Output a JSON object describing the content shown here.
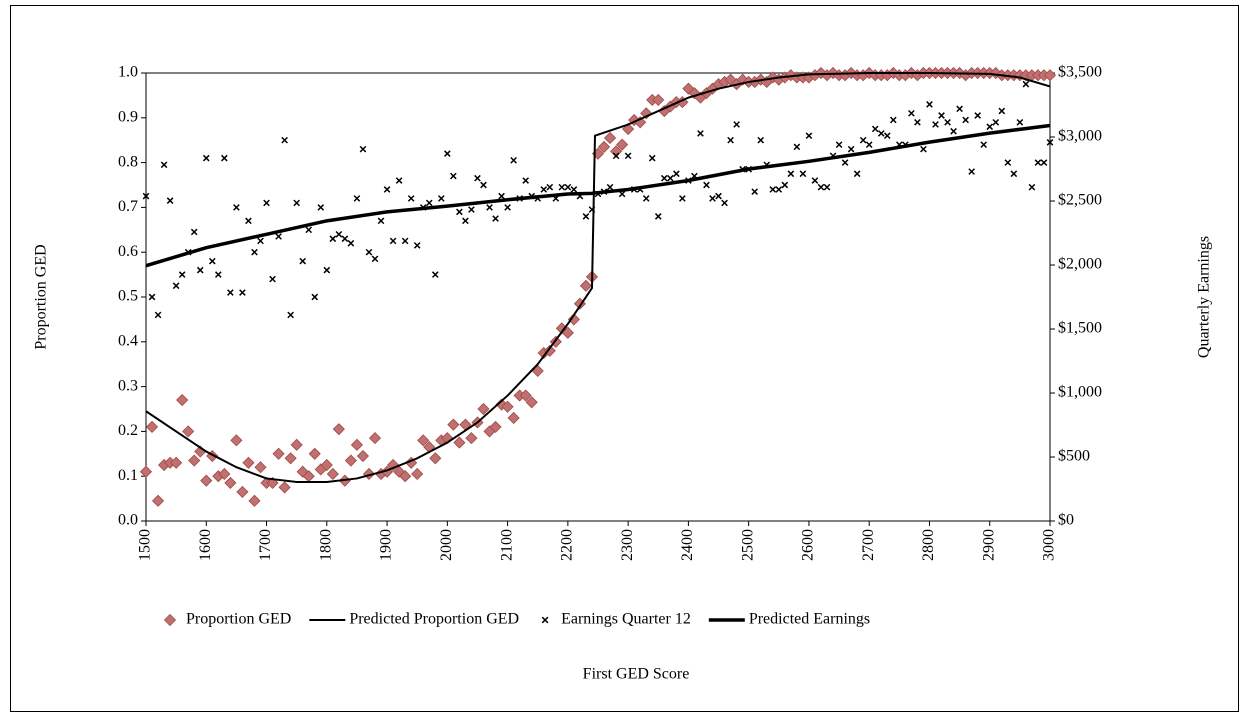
{
  "chart_data": {
    "type": "scatter",
    "x_label": "First GED Score",
    "y_label": "Proportion GED",
    "y2_label": "Quarterly Earnings",
    "xlim": [
      1500,
      3000
    ],
    "xticks": [
      1500,
      1600,
      1700,
      1800,
      1900,
      2000,
      2100,
      2200,
      2300,
      2400,
      2500,
      2600,
      2700,
      2800,
      2900,
      3000
    ],
    "ylim": [
      0,
      1
    ],
    "yticks": [
      {
        "value": 0,
        "label": "0.0"
      },
      0.1,
      0.2,
      0.3,
      0.4,
      0.5,
      0.6,
      0.7,
      0.8,
      0.9,
      {
        "value": 1,
        "label": "1.0"
      }
    ],
    "y2lim": [
      0,
      3500
    ],
    "y2ticks": [
      {
        "value": 0,
        "label": "$0"
      },
      {
        "value": 500,
        "label": "$500"
      },
      {
        "value": 1000,
        "label": "$1,000"
      },
      {
        "value": 1500,
        "label": "$1,500"
      },
      {
        "value": 2000,
        "label": "$2,000"
      },
      {
        "value": 2500,
        "label": "$2,500"
      },
      {
        "value": 3000,
        "label": "$3,000"
      },
      {
        "value": 3500,
        "label": "$3,500"
      }
    ],
    "grid": false,
    "legend": "bottom",
    "series": [
      {
        "name": "Proportion GED",
        "type": "scatter",
        "marker": "diamond",
        "color": "#c0706e",
        "x": [
          1500,
          1510,
          1520,
          1530,
          1540,
          1550,
          1560,
          1570,
          1580,
          1590,
          1600,
          1610,
          1620,
          1630,
          1640,
          1650,
          1660,
          1670,
          1680,
          1690,
          1700,
          1710,
          1720,
          1730,
          1740,
          1750,
          1760,
          1770,
          1780,
          1790,
          1800,
          1810,
          1820,
          1830,
          1840,
          1850,
          1860,
          1870,
          1880,
          1890,
          1900,
          1910,
          1920,
          1930,
          1940,
          1950,
          1960,
          1970,
          1980,
          1990,
          2000,
          2010,
          2020,
          2030,
          2040,
          2050,
          2060,
          2070,
          2080,
          2090,
          2100,
          2110,
          2120,
          2130,
          2140,
          2150,
          2160,
          2170,
          2180,
          2190,
          2200,
          2210,
          2220,
          2230,
          2240,
          2250,
          2260,
          2270,
          2280,
          2290,
          2300,
          2310,
          2320,
          2330,
          2340,
          2350,
          2360,
          2370,
          2380,
          2390,
          2400,
          2410,
          2420,
          2430,
          2440,
          2450,
          2460,
          2470,
          2480,
          2490,
          2500,
          2510,
          2520,
          2530,
          2540,
          2550,
          2560,
          2570,
          2580,
          2590,
          2600,
          2610,
          2620,
          2630,
          2640,
          2650,
          2660,
          2670,
          2680,
          2690,
          2700,
          2710,
          2720,
          2730,
          2740,
          2750,
          2760,
          2770,
          2780,
          2790,
          2800,
          2810,
          2820,
          2830,
          2840,
          2850,
          2860,
          2870,
          2880,
          2890,
          2900,
          2910,
          2920,
          2930,
          2940,
          2950,
          2960,
          2970,
          2980,
          2990,
          3000
        ],
        "values": [
          0.11,
          0.21,
          0.045,
          0.125,
          0.13,
          0.13,
          0.27,
          0.2,
          0.135,
          0.155,
          0.09,
          0.145,
          0.1,
          0.105,
          0.085,
          0.18,
          0.065,
          0.13,
          0.045,
          0.12,
          0.085,
          0.085,
          0.15,
          0.075,
          0.14,
          0.17,
          0.11,
          0.1,
          0.15,
          0.115,
          0.125,
          0.105,
          0.205,
          0.09,
          0.135,
          0.17,
          0.145,
          0.105,
          0.185,
          0.105,
          0.11,
          0.125,
          0.11,
          0.1,
          0.13,
          0.105,
          0.18,
          0.165,
          0.14,
          0.18,
          0.185,
          0.215,
          0.175,
          0.215,
          0.185,
          0.22,
          0.25,
          0.2,
          0.21,
          0.26,
          0.255,
          0.23,
          0.28,
          0.28,
          0.265,
          0.335,
          0.375,
          0.38,
          0.4,
          0.43,
          0.42,
          0.45,
          0.485,
          0.525,
          0.545,
          0.82,
          0.835,
          0.855,
          0.825,
          0.84,
          0.875,
          0.895,
          0.89,
          0.91,
          0.94,
          0.94,
          0.915,
          0.925,
          0.935,
          0.935,
          0.965,
          0.955,
          0.945,
          0.955,
          0.965,
          0.975,
          0.98,
          0.985,
          0.975,
          0.985,
          0.98,
          0.98,
          0.985,
          0.98,
          0.99,
          0.985,
          0.99,
          0.995,
          0.99,
          0.99,
          0.99,
          0.995,
          1.0,
          0.995,
          1.0,
          0.995,
          0.995,
          1.0,
          0.995,
          0.995,
          1.0,
          0.995,
          0.995,
          0.995,
          1.0,
          0.995,
          0.995,
          1.0,
          0.995,
          1.0,
          1.0,
          1.0,
          1.0,
          1.0,
          1.0,
          1.0,
          0.995,
          1.0,
          1.0,
          1.0,
          1.0,
          1.0,
          0.995,
          0.995,
          0.995,
          0.995,
          0.995,
          0.995,
          0.995,
          0.995,
          0.995
        ]
      },
      {
        "name": "Predicted Proportion GED",
        "type": "line",
        "line_width": 2,
        "color": "#000000",
        "x": [
          1500,
          1550,
          1600,
          1650,
          1700,
          1750,
          1800,
          1850,
          1900,
          1950,
          2000,
          2050,
          2100,
          2150,
          2200,
          2240,
          2245,
          2300,
          2350,
          2400,
          2450,
          2500,
          2550,
          2600,
          2700,
          2800,
          2900,
          2950,
          3000
        ],
        "values": [
          0.245,
          0.2,
          0.155,
          0.12,
          0.095,
          0.087,
          0.087,
          0.095,
          0.113,
          0.14,
          0.175,
          0.22,
          0.28,
          0.35,
          0.44,
          0.52,
          0.86,
          0.885,
          0.915,
          0.945,
          0.965,
          0.98,
          0.99,
          0.997,
          1.0,
          1.0,
          0.998,
          0.99,
          0.97
        ]
      },
      {
        "name": "Earnings Quarter 12",
        "type": "scatter",
        "marker": "x",
        "color": "#000000",
        "axis": "y2",
        "x": [
          1500,
          1510,
          1520,
          1530,
          1540,
          1550,
          1560,
          1570,
          1580,
          1590,
          1600,
          1610,
          1620,
          1630,
          1640,
          1650,
          1660,
          1670,
          1680,
          1690,
          1700,
          1710,
          1720,
          1730,
          1740,
          1750,
          1760,
          1770,
          1780,
          1790,
          1800,
          1810,
          1820,
          1830,
          1840,
          1850,
          1860,
          1870,
          1880,
          1890,
          1900,
          1910,
          1920,
          1930,
          1940,
          1950,
          1960,
          1970,
          1980,
          1990,
          2000,
          2010,
          2020,
          2030,
          2040,
          2050,
          2060,
          2070,
          2080,
          2090,
          2100,
          2110,
          2120,
          2130,
          2140,
          2150,
          2160,
          2170,
          2180,
          2190,
          2200,
          2210,
          2220,
          2230,
          2240,
          2250,
          2260,
          2270,
          2280,
          2290,
          2300,
          2310,
          2320,
          2330,
          2340,
          2350,
          2360,
          2370,
          2380,
          2390,
          2400,
          2410,
          2420,
          2430,
          2440,
          2450,
          2460,
          2470,
          2480,
          2490,
          2500,
          2510,
          2520,
          2530,
          2540,
          2550,
          2560,
          2570,
          2580,
          2590,
          2600,
          2610,
          2620,
          2630,
          2640,
          2650,
          2660,
          2670,
          2680,
          2690,
          2700,
          2710,
          2720,
          2730,
          2740,
          2750,
          2760,
          2770,
          2780,
          2790,
          2800,
          2810,
          2820,
          2830,
          2840,
          2850,
          2860,
          2870,
          2880,
          2890,
          2900,
          2910,
          2920,
          2930,
          2940,
          2950,
          2960,
          2970,
          2980,
          2990,
          3000
        ],
        "values": [
          2538,
          1750,
          1610,
          2783,
          2503,
          1838,
          1925,
          2100,
          2258,
          1960,
          2835,
          2030,
          1925,
          2835,
          1785,
          2450,
          1785,
          2345,
          2100,
          2188,
          2485,
          1890,
          2223,
          2975,
          1610,
          2485,
          2030,
          2275,
          1750,
          2450,
          1960,
          2205,
          2240,
          2205,
          2170,
          2520,
          2905,
          2100,
          2048,
          2345,
          2590,
          2188,
          2660,
          2188,
          2520,
          2153,
          2450,
          2485,
          1925,
          2520,
          2870,
          2695,
          2415,
          2345,
          2433,
          2678,
          2625,
          2450,
          2363,
          2538,
          2450,
          2818,
          2520,
          2660,
          2538,
          2520,
          2590,
          2608,
          2520,
          2608,
          2608,
          2590,
          2538,
          2380,
          2433,
          2555,
          2573,
          2608,
          2853,
          2555,
          2853,
          2590,
          2590,
          2520,
          2835,
          2380,
          2678,
          2678,
          2713,
          2520,
          2660,
          2695,
          3028,
          2625,
          2520,
          2538,
          2485,
          2975,
          3098,
          2748,
          2748,
          2573,
          2975,
          2783,
          2590,
          2590,
          2625,
          2713,
          2923,
          2713,
          3010,
          2660,
          2608,
          2608,
          2853,
          2940,
          2800,
          2905,
          2713,
          2975,
          2940,
          3063,
          3028,
          3010,
          3133,
          2940,
          2940,
          3185,
          3115,
          2905,
          3255,
          3098,
          3168,
          3115,
          3045,
          3220,
          3133,
          2730,
          3168,
          2940,
          3080,
          3115,
          3203,
          2800,
          2713,
          3115,
          3413,
          2608,
          2800,
          2800,
          2958
        ]
      },
      {
        "name": "Predicted Earnings",
        "type": "line",
        "line_width": 3.5,
        "color": "#000000",
        "axis": "y2",
        "x": [
          1500,
          1600,
          1700,
          1800,
          1900,
          2000,
          2100,
          2200,
          2240,
          2300,
          2400,
          2500,
          2600,
          2700,
          2800,
          2900,
          3000
        ],
        "values": [
          1995,
          2135,
          2240,
          2345,
          2415,
          2460,
          2510,
          2555,
          2560,
          2590,
          2660,
          2750,
          2810,
          2880,
          2960,
          3030,
          3090
        ]
      }
    ]
  }
}
